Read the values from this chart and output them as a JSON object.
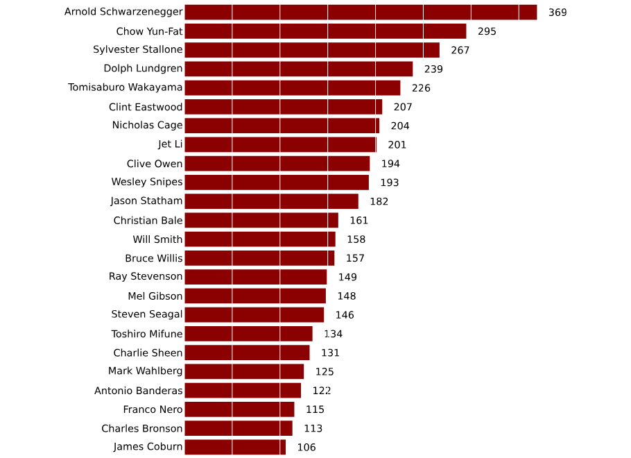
{
  "chart_data": {
    "type": "bar",
    "orientation": "horizontal",
    "categories": [
      "Arnold Schwarzenegger",
      "Chow Yun-Fat",
      "Sylvester Stallone",
      "Dolph Lundgren",
      "Tomisaburo Wakayama",
      "Clint Eastwood",
      "Nicholas Cage",
      "Jet Li",
      "Clive Owen",
      "Wesley Snipes",
      "Jason Statham",
      "Christian Bale",
      "Will Smith",
      "Bruce Willis",
      "Ray Stevenson",
      "Mel Gibson",
      "Steven Seagal",
      "Toshiro Mifune",
      "Charlie Sheen",
      "Mark Wahlberg",
      "Antonio Banderas",
      "Franco Nero",
      "Charles Bronson",
      "James Coburn"
    ],
    "values": [
      369,
      295,
      267,
      239,
      226,
      207,
      204,
      201,
      194,
      193,
      182,
      161,
      158,
      157,
      149,
      148,
      146,
      134,
      131,
      125,
      122,
      115,
      113,
      106
    ],
    "color": "#8b0000",
    "data_labels": true,
    "grid": "x",
    "tick_labels": "y",
    "xlim": [
      0,
      450
    ],
    "xticks": [
      {
        "value": 0,
        "label": null
      },
      {
        "value": 50,
        "label": null
      },
      {
        "value": 100,
        "label": null
      },
      {
        "value": 150,
        "label": null
      },
      {
        "value": 200,
        "label": null
      },
      {
        "value": 250,
        "label": null
      },
      {
        "value": 300,
        "label": null
      },
      {
        "value": 350,
        "label": null
      },
      {
        "value": 400,
        "label": null
      },
      {
        "value": 450,
        "label": null
      }
    ]
  }
}
